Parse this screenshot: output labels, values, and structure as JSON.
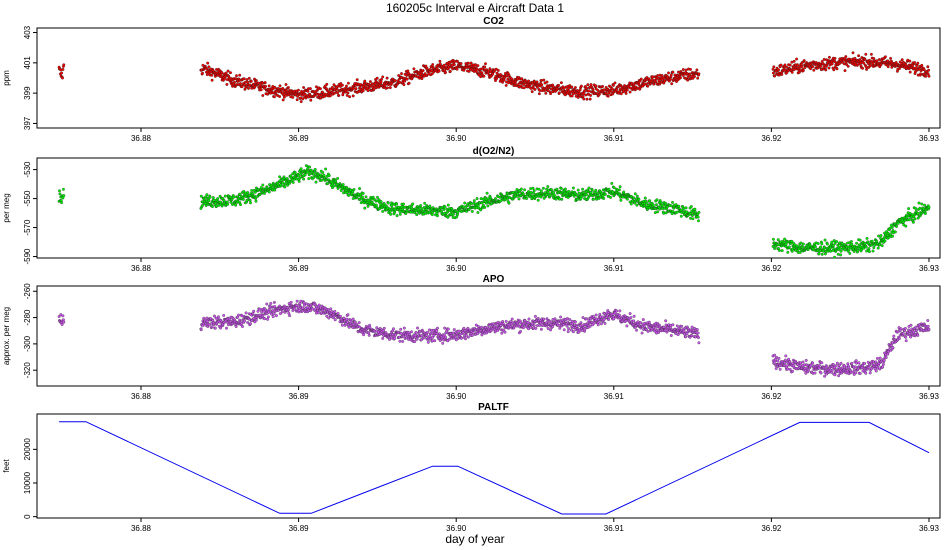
{
  "page": {
    "title": "160205c   Interval e Aircraft Data 1",
    "xlabel": "day of year"
  },
  "chart_data": [
    {
      "type": "scatter",
      "title": "CO2",
      "ylabel": "ppm",
      "xlim": [
        36.8734,
        36.9307
      ],
      "ylim": [
        396.7,
        403.3
      ],
      "xticks": [
        36.88,
        36.89,
        36.9,
        36.91,
        36.92,
        36.93
      ],
      "xtick_labels": [
        "36.88",
        "36.89",
        "36.90",
        "36.91",
        "36.92",
        "36.93"
      ],
      "yticks": [
        397,
        399,
        401,
        403
      ],
      "ytick_labels": [
        "397",
        "399",
        "401",
        "403"
      ],
      "color": "#ee0000",
      "segments": [
        {
          "x_start": 36.8748,
          "x_end": 36.8751,
          "points": [
            [
              36.8748,
              400.5
            ],
            [
              36.875,
              400.1
            ],
            [
              36.8751,
              400.8
            ]
          ]
        },
        {
          "x_start": 36.8838,
          "x_end": 36.9154,
          "points": [
            [
              36.884,
              400.6
            ],
            [
              36.886,
              399.8
            ],
            [
              36.888,
              399.3
            ],
            [
              36.89,
              398.9
            ],
            [
              36.892,
              399.1
            ],
            [
              36.894,
              399.4
            ],
            [
              36.896,
              399.7
            ],
            [
              36.898,
              400.4
            ],
            [
              36.9,
              400.8
            ],
            [
              36.902,
              400.4
            ],
            [
              36.904,
              399.7
            ],
            [
              36.906,
              399.3
            ],
            [
              36.908,
              399.1
            ],
            [
              36.91,
              399.2
            ],
            [
              36.912,
              399.7
            ],
            [
              36.914,
              400.1
            ],
            [
              36.9154,
              400.3
            ]
          ]
        },
        {
          "x_start": 36.9201,
          "x_end": 36.93,
          "points": [
            [
              36.9201,
              400.4
            ],
            [
              36.922,
              400.8
            ],
            [
              36.924,
              401.0
            ],
            [
              36.926,
              401.1
            ],
            [
              36.928,
              400.9
            ],
            [
              36.93,
              400.5
            ]
          ]
        }
      ]
    },
    {
      "type": "scatter",
      "title": "d(O2/N2)",
      "ylabel": "per meg",
      "xlim": [
        36.8734,
        36.9307
      ],
      "ylim": [
        -591,
        -522
      ],
      "xticks": [
        36.88,
        36.89,
        36.9,
        36.91,
        36.92,
        36.93
      ],
      "xtick_labels": [
        "36.88",
        "36.89",
        "36.90",
        "36.91",
        "36.92",
        "36.93"
      ],
      "yticks": [
        -590,
        -570,
        -550,
        -530
      ],
      "ytick_labels": [
        "-590",
        "-570",
        "-550",
        "-530"
      ],
      "color": "#00ee00",
      "segments": [
        {
          "x_start": 36.8748,
          "x_end": 36.8751,
          "points": [
            [
              36.8748,
              -549
            ],
            [
              36.8751,
              -548
            ]
          ]
        },
        {
          "x_start": 36.8838,
          "x_end": 36.9154,
          "points": [
            [
              36.884,
              -552
            ],
            [
              36.886,
              -551
            ],
            [
              36.888,
              -544
            ],
            [
              36.8895,
              -537
            ],
            [
              36.8905,
              -532
            ],
            [
              36.8915,
              -534
            ],
            [
              36.892,
              -538
            ],
            [
              36.894,
              -550
            ],
            [
              36.896,
              -557
            ],
            [
              36.898,
              -558
            ],
            [
              36.9,
              -559
            ],
            [
              36.902,
              -552
            ],
            [
              36.904,
              -547
            ],
            [
              36.906,
              -546
            ],
            [
              36.908,
              -548
            ],
            [
              36.91,
              -545
            ],
            [
              36.912,
              -554
            ],
            [
              36.914,
              -557
            ],
            [
              36.9154,
              -562
            ]
          ]
        },
        {
          "x_start": 36.9201,
          "x_end": 36.93,
          "points": [
            [
              36.9201,
              -581
            ],
            [
              36.922,
              -584
            ],
            [
              36.924,
              -584
            ],
            [
              36.926,
              -583
            ],
            [
              36.927,
              -580
            ],
            [
              36.928,
              -567
            ],
            [
              36.93,
              -556
            ]
          ]
        }
      ]
    },
    {
      "type": "scatter",
      "title": "APO",
      "ylabel": "approx. per meg",
      "xlim": [
        36.8734,
        36.9307
      ],
      "ylim": [
        -332,
        -256
      ],
      "xticks": [
        36.88,
        36.89,
        36.9,
        36.91,
        36.92,
        36.93
      ],
      "xtick_labels": [
        "36.88",
        "36.89",
        "36.90",
        "36.91",
        "36.92",
        "36.93"
      ],
      "yticks": [
        -320,
        -300,
        -280,
        -260
      ],
      "ytick_labels": [
        "-320",
        "-300",
        "-280",
        "-260"
      ],
      "color": "#cc55ee",
      "segments": [
        {
          "x_start": 36.8748,
          "x_end": 36.8751,
          "points": [
            [
              36.8748,
              -283
            ],
            [
              36.8751,
              -281
            ]
          ]
        },
        {
          "x_start": 36.8838,
          "x_end": 36.9154,
          "points": [
            [
              36.884,
              -284
            ],
            [
              36.886,
              -283
            ],
            [
              36.888,
              -276
            ],
            [
              36.8895,
              -272
            ],
            [
              36.8905,
              -271
            ],
            [
              36.892,
              -276
            ],
            [
              36.894,
              -289
            ],
            [
              36.896,
              -293
            ],
            [
              36.898,
              -294
            ],
            [
              36.9,
              -293
            ],
            [
              36.902,
              -288
            ],
            [
              36.904,
              -285
            ],
            [
              36.906,
              -284
            ],
            [
              36.908,
              -286
            ],
            [
              36.9098,
              -277
            ],
            [
              36.912,
              -287
            ],
            [
              36.914,
              -290
            ],
            [
              36.9154,
              -293
            ]
          ]
        },
        {
          "x_start": 36.9201,
          "x_end": 36.93,
          "points": [
            [
              36.9201,
              -313
            ],
            [
              36.922,
              -318
            ],
            [
              36.924,
              -319
            ],
            [
              36.926,
              -318
            ],
            [
              36.927,
              -315
            ],
            [
              36.928,
              -293
            ],
            [
              36.93,
              -287
            ]
          ]
        }
      ]
    },
    {
      "type": "line",
      "title": "PALTF",
      "ylabel": "feet",
      "xlim": [
        36.8734,
        36.9307
      ],
      "ylim": [
        -400,
        30500
      ],
      "xticks": [
        36.88,
        36.89,
        36.9,
        36.91,
        36.92,
        36.93
      ],
      "xtick_labels": [
        "36.88",
        "36.89",
        "36.90",
        "36.91",
        "36.92",
        "36.93"
      ],
      "yticks": [
        0,
        10000,
        20000
      ],
      "ytick_labels": [
        "0",
        "10000",
        "20000"
      ],
      "color": "#0000ee",
      "x": [
        36.8748,
        36.8765,
        36.8888,
        36.8908,
        36.8985,
        36.9001,
        36.9067,
        36.9095,
        36.9218,
        36.9262,
        36.93
      ],
      "y": [
        28200,
        28200,
        1000,
        1000,
        15000,
        15000,
        800,
        800,
        28000,
        28000,
        19000
      ]
    }
  ]
}
